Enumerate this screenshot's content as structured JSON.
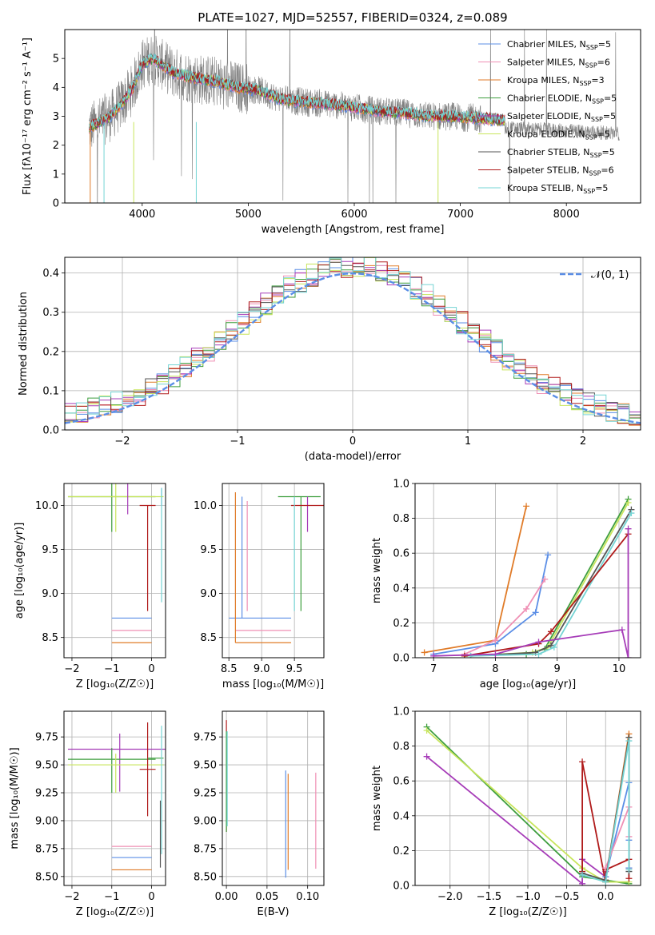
{
  "colors": {
    "chabrier_miles": "#5b8ee6",
    "salpeter_miles": "#ef8fb4",
    "kroupa_miles": "#e07b28",
    "chabrier_elodie": "#3e9e3e",
    "salpeter_elodie": "#a63cb8",
    "kroupa_elodie": "#c8e55c",
    "chabrier_stelib": "#555555",
    "salpeter_stelib": "#b01a1a",
    "kroupa_stelib": "#74d4d4",
    "data": "#808080",
    "gauss": "#5b8ee6"
  },
  "chart_data": [
    {
      "id": "spectrum",
      "type": "line",
      "title": "PLATE=1027, MJD=52557, FIBERID=0324, z=0.089",
      "xlabel": "wavelength [Angstrom, rest frame]",
      "ylabel": "Flux [fλ10⁻¹⁷ erg cm⁻² s⁻¹ A⁻¹]",
      "xlim": [
        3270,
        8700
      ],
      "ylim": [
        0,
        6
      ],
      "xticks": [
        "4000",
        "5000",
        "6000",
        "7000",
        "8000"
      ],
      "yticks": [
        "0",
        "1",
        "2",
        "3",
        "4",
        "5"
      ],
      "legend_position": "right",
      "legend": [
        {
          "key": "chabrier_miles",
          "label": "Chabrier MILES, N",
          "sub": "SSP",
          "n": "=5"
        },
        {
          "key": "salpeter_miles",
          "label": "Salpeter MILES, N",
          "sub": "SSP",
          "n": "=6"
        },
        {
          "key": "kroupa_miles",
          "label": "Kroupa MILES, N",
          "sub": "SSP",
          "n": "=3"
        },
        {
          "key": "chabrier_elodie",
          "label": "Chabrier ELODIE, N",
          "sub": "SSP",
          "n": "=5"
        },
        {
          "key": "salpeter_elodie",
          "label": "Salpeter ELODIE, N",
          "sub": "SSP",
          "n": "=5"
        },
        {
          "key": "kroupa_elodie",
          "label": "Kroupa ELODIE, N",
          "sub": "SSP",
          "n": "=5"
        },
        {
          "key": "chabrier_stelib",
          "label": "Chabrier STELIB, N",
          "sub": "SSP",
          "n": "=5"
        },
        {
          "key": "salpeter_stelib",
          "label": "Salpeter STELIB, N",
          "sub": "SSP",
          "n": "=6"
        },
        {
          "key": "kroupa_stelib",
          "label": "Kroupa STELIB, N",
          "sub": "SSP",
          "n": "=5"
        }
      ],
      "model_continuum": [
        [
          3500,
          2.6
        ],
        [
          3700,
          3.0
        ],
        [
          3800,
          3.4
        ],
        [
          3900,
          3.9
        ],
        [
          4000,
          4.8
        ],
        [
          4100,
          5.0
        ],
        [
          4300,
          4.5
        ],
        [
          4500,
          4.3
        ],
        [
          4700,
          4.2
        ],
        [
          4900,
          4.0
        ],
        [
          5100,
          3.9
        ],
        [
          5300,
          3.6
        ],
        [
          5500,
          3.5
        ],
        [
          5700,
          3.45
        ],
        [
          5900,
          3.35
        ],
        [
          6100,
          3.25
        ],
        [
          6300,
          3.15
        ],
        [
          6500,
          3.1
        ],
        [
          6700,
          3.0
        ],
        [
          6900,
          3.0
        ],
        [
          7100,
          2.95
        ],
        [
          7300,
          2.9
        ],
        [
          7420,
          2.85
        ]
      ],
      "data_range": [
        3500,
        8500
      ]
    },
    {
      "id": "residuals",
      "type": "bar",
      "xlabel": "(data-model)/error",
      "ylabel": "Normed distribution",
      "xlim": [
        -2.5,
        2.5
      ],
      "ylim": [
        0,
        0.44
      ],
      "xticks": [
        "−2",
        "−1",
        "0",
        "1",
        "2"
      ],
      "yticks": [
        "0.0",
        "0.1",
        "0.2",
        "0.3",
        "0.4"
      ],
      "legend_position": "top-right",
      "gauss_label": "𝒩(0, 1)",
      "histogram_bin_width": 0.1
    },
    {
      "id": "age_vs_Z",
      "type": "scatter",
      "xlabel": "Z [log₁₀(Z/Z☉)]",
      "ylabel": "age  [log₁₀(age/yr)]",
      "xlim": [
        -2.2,
        0.35
      ],
      "ylim": [
        8.27,
        10.25
      ],
      "xticks": [
        "−2",
        "−1",
        "0"
      ],
      "yticks": [
        "8.5",
        "9.0",
        "9.5",
        "10.0"
      ],
      "points": [
        {
          "key": "chabrier_miles",
          "x": 0.25,
          "y": 10.1,
          "xerr": [
            0,
            0
          ],
          "yerr": [
            0.1,
            0.1
          ]
        },
        {
          "key": "chabrier_miles",
          "x": -0.5,
          "y": 8.72,
          "xerr": [
            0.5,
            0.5
          ],
          "yerr": [
            0,
            0
          ]
        },
        {
          "key": "salpeter_miles",
          "x": -0.5,
          "y": 8.58,
          "xerr": [
            0.5,
            0.5
          ],
          "yerr": [
            0,
            0
          ]
        },
        {
          "key": "kroupa_miles",
          "x": -0.5,
          "y": 8.44,
          "xerr": [
            0.5,
            0.5
          ],
          "yerr": [
            0,
            0
          ]
        },
        {
          "key": "chabrier_elodie",
          "x": -1.0,
          "y": 10.1,
          "xerr": [
            1.1,
            1.1
          ],
          "yerr": [
            0.4,
            0.4
          ]
        },
        {
          "key": "kroupa_elodie",
          "x": -0.9,
          "y": 10.1,
          "xerr": [
            1.2,
            1.2
          ],
          "yerr": [
            0.4,
            0.4
          ]
        },
        {
          "key": "salpeter_elodie",
          "x": -0.6,
          "y": 10.1,
          "xerr": [
            0,
            0
          ],
          "yerr": [
            0.2,
            0.2
          ]
        },
        {
          "key": "salpeter_stelib",
          "x": -0.1,
          "y": 10.0,
          "xerr": [
            0.2,
            0.2
          ],
          "yerr": [
            1.2,
            0.0
          ]
        },
        {
          "key": "kroupa_stelib",
          "x": 0.25,
          "y": 10.1,
          "xerr": [
            0,
            0
          ],
          "yerr": [
            1.2,
            0.1
          ]
        }
      ]
    },
    {
      "id": "age_vs_mass",
      "type": "scatter",
      "xlabel": "mass [log₁₀(M/M☉)]",
      "ylabel": "",
      "xlim": [
        8.4,
        9.95
      ],
      "ylim": [
        8.27,
        10.25
      ],
      "xticks": [
        "8.5",
        "9.0",
        "9.5"
      ],
      "yticks": [
        "8.5",
        "9.0",
        "9.5",
        "10.0"
      ],
      "points": [
        {
          "key": "chabrier_miles",
          "x": 9.0,
          "y": 8.72,
          "xerr": [
            0.5,
            0.45
          ],
          "yerr": [
            0,
            0
          ]
        },
        {
          "key": "salpeter_miles",
          "x": 9.0,
          "y": 8.58,
          "xerr": [
            0.4,
            0.45
          ],
          "yerr": [
            0,
            0
          ]
        },
        {
          "key": "kroupa_miles",
          "x": 9.0,
          "y": 8.44,
          "xerr": [
            0.4,
            0.45
          ],
          "yerr": [
            0,
            0
          ]
        },
        {
          "key": "kroupa_miles",
          "x": 8.6,
          "y": 10.1,
          "xerr": [
            0,
            0
          ],
          "yerr": [
            1.66,
            0.05
          ]
        },
        {
          "key": "chabrier_miles",
          "x": 8.7,
          "y": 10.1,
          "xerr": [
            0,
            0
          ],
          "yerr": [
            1.38,
            0.0
          ]
        },
        {
          "key": "salpeter_miles",
          "x": 8.78,
          "y": 10.0,
          "xerr": [
            0,
            0
          ],
          "yerr": [
            1.2,
            0.05
          ]
        },
        {
          "key": "chabrier_elodie",
          "x": 9.6,
          "y": 10.1,
          "xerr": [
            0.35,
            0.3
          ],
          "yerr": [
            1.3,
            0.0
          ]
        },
        {
          "key": "salpeter_elodie",
          "x": 9.7,
          "y": 10.1,
          "xerr": [
            0,
            0
          ],
          "yerr": [
            0.4,
            0.0
          ]
        },
        {
          "key": "salpeter_stelib",
          "x": 9.7,
          "y": 10.0,
          "xerr": [
            0.25,
            0.3
          ],
          "yerr": [
            0,
            0
          ]
        },
        {
          "key": "kroupa_stelib",
          "x": 9.5,
          "y": 10.1,
          "xerr": [
            0,
            0
          ],
          "yerr": [
            1.3,
            0.0
          ]
        }
      ]
    },
    {
      "id": "mass_weight_vs_age",
      "type": "line",
      "xlabel": "age  [log₁₀(age/yr)]",
      "ylabel": "mass weight",
      "xlim": [
        6.7,
        10.35
      ],
      "ylim": [
        0,
        1
      ],
      "xticks": [
        "7",
        "8",
        "9",
        "10"
      ],
      "yticks": [
        "0.0",
        "0.2",
        "0.4",
        "0.6",
        "0.8",
        "1.0"
      ],
      "series": [
        {
          "key": "kroupa_miles",
          "x": [
            6.85,
            8.0,
            8.5
          ],
          "y": [
            0.03,
            0.1,
            0.87
          ]
        },
        {
          "key": "chabrier_miles",
          "x": [
            7.0,
            8.0,
            8.65,
            8.85
          ],
          "y": [
            0.02,
            0.08,
            0.26,
            0.59
          ]
        },
        {
          "key": "salpeter_miles",
          "x": [
            7.5,
            8.0,
            8.5,
            8.8
          ],
          "y": [
            0.02,
            0.1,
            0.28,
            0.45
          ]
        },
        {
          "key": "chabrier_elodie",
          "x": [
            7.5,
            8.5,
            8.8,
            10.15
          ],
          "y": [
            0.01,
            0.02,
            0.05,
            0.91
          ]
        },
        {
          "key": "kroupa_elodie",
          "x": [
            7.5,
            8.6,
            8.85,
            10.15
          ],
          "y": [
            0.01,
            0.03,
            0.06,
            0.89
          ]
        },
        {
          "key": "chabrier_stelib",
          "x": [
            7.6,
            8.65,
            8.9,
            10.2
          ],
          "y": [
            0.01,
            0.03,
            0.07,
            0.85
          ]
        },
        {
          "key": "kroupa_stelib",
          "x": [
            7.6,
            8.7,
            8.95,
            10.2
          ],
          "y": [
            0.01,
            0.02,
            0.06,
            0.83
          ]
        },
        {
          "key": "salpeter_stelib",
          "x": [
            7.5,
            8.7,
            8.9,
            10.15
          ],
          "y": [
            0.01,
            0.08,
            0.15,
            0.71
          ]
        },
        {
          "key": "salpeter_elodie",
          "x": [
            7.0,
            8.0,
            8.7,
            10.05,
            10.15,
            10.15
          ],
          "y": [
            0.01,
            0.02,
            0.09,
            0.16,
            0.0,
            0.74
          ]
        }
      ]
    },
    {
      "id": "mass_vs_Z",
      "type": "scatter",
      "xlabel": "Z [log₁₀(Z/Z☉)]",
      "ylabel": "mass [log₁₀(M/M☉)]",
      "xlim": [
        -2.2,
        0.35
      ],
      "ylim": [
        8.42,
        9.98
      ],
      "xticks": [
        "−2",
        "−1",
        "0"
      ],
      "yticks": [
        "8.50",
        "8.75",
        "9.00",
        "9.25",
        "9.50",
        "9.75"
      ],
      "points": [
        {
          "key": "salpeter_elodie",
          "x": -0.8,
          "y": 9.64,
          "xerr": [
            1.3,
            1.3
          ],
          "yerr": [
            0.38,
            0.14
          ]
        },
        {
          "key": "chabrier_elodie",
          "x": -1.0,
          "y": 9.55,
          "xerr": [
            1.1,
            1.1
          ],
          "yerr": [
            0.3,
            0.1
          ]
        },
        {
          "key": "kroupa_elodie",
          "x": -0.9,
          "y": 9.5,
          "xerr": [
            1.2,
            1.2
          ],
          "yerr": [
            0.25,
            0.1
          ]
        },
        {
          "key": "salpeter_stelib",
          "x": -0.1,
          "y": 9.46,
          "xerr": [
            0.2,
            0.2
          ],
          "yerr": [
            0.42,
            0.42
          ]
        },
        {
          "key": "chabrier_elodie",
          "x": 0.1,
          "y": 9.56,
          "xerr": [
            0.2,
            0.2
          ],
          "yerr": [
            0,
            0
          ]
        },
        {
          "key": "kroupa_stelib",
          "x": 0.25,
          "y": 9.55,
          "xerr": [
            0,
            0
          ],
          "yerr": [
            0.85,
            0.3
          ]
        },
        {
          "key": "chabrier_stelib",
          "x": 0.22,
          "y": 8.88,
          "xerr": [
            0,
            0
          ],
          "yerr": [
            0.3,
            0.3
          ]
        },
        {
          "key": "salpeter_miles",
          "x": -0.5,
          "y": 8.77,
          "xerr": [
            0.5,
            0.5
          ],
          "yerr": [
            0,
            0
          ]
        },
        {
          "key": "chabrier_miles",
          "x": -0.5,
          "y": 8.67,
          "xerr": [
            0.5,
            0.5
          ],
          "yerr": [
            0,
            0
          ]
        },
        {
          "key": "kroupa_miles",
          "x": -0.5,
          "y": 8.56,
          "xerr": [
            0.5,
            0.5
          ],
          "yerr": [
            0,
            0
          ]
        }
      ]
    },
    {
      "id": "mass_vs_EBV",
      "type": "scatter",
      "xlabel": "E(B-V)",
      "ylabel": "",
      "xlim": [
        -0.005,
        0.12
      ],
      "ylim": [
        8.42,
        9.98
      ],
      "xticks": [
        "0.00",
        "0.05",
        "0.10"
      ],
      "yticks": [
        "8.50",
        "8.75",
        "9.00",
        "9.25",
        "9.50",
        "9.75"
      ],
      "points": [
        {
          "key": "salpeter_stelib",
          "x": 0.0,
          "y": 9.5,
          "xerr": [
            0,
            0
          ],
          "yerr": [
            0.6,
            0.4
          ]
        },
        {
          "key": "chabrier_elodie",
          "x": 0.0,
          "y": 9.4,
          "xerr": [
            0,
            0
          ],
          "yerr": [
            0.5,
            0.4
          ]
        },
        {
          "key": "kroupa_stelib",
          "x": 0.001,
          "y": 9.35,
          "xerr": [
            0,
            0
          ],
          "yerr": [
            0.4,
            0.45
          ]
        },
        {
          "key": "chabrier_miles",
          "x": 0.073,
          "y": 8.97,
          "xerr": [
            0,
            0
          ],
          "yerr": [
            0.48,
            0.48
          ]
        },
        {
          "key": "kroupa_miles",
          "x": 0.076,
          "y": 8.99,
          "xerr": [
            0,
            0
          ],
          "yerr": [
            0.43,
            0.43
          ]
        },
        {
          "key": "salpeter_miles",
          "x": 0.11,
          "y": 9.0,
          "xerr": [
            0,
            0
          ],
          "yerr": [
            0.43,
            0.43
          ]
        }
      ]
    },
    {
      "id": "mass_weight_vs_Z",
      "type": "line",
      "xlabel": "Z [log₁₀(Z/Z☉)]",
      "ylabel": "mass weight",
      "xlim": [
        -2.45,
        0.45
      ],
      "ylim": [
        0,
        1
      ],
      "xticks": [
        "−2.0",
        "−1.5",
        "−1.0",
        "−0.5",
        "0.0"
      ],
      "yticks": [
        "0.0",
        "0.2",
        "0.4",
        "0.6",
        "0.8",
        "1.0"
      ],
      "series": [
        {
          "key": "chabrier_elodie",
          "x": [
            -2.3,
            -0.3,
            0.0,
            0.3
          ],
          "y": [
            0.91,
            0.05,
            0.03,
            0.01
          ]
        },
        {
          "key": "kroupa_elodie",
          "x": [
            -2.3,
            -0.3,
            0.0,
            0.3
          ],
          "y": [
            0.89,
            0.1,
            0.02,
            0.02
          ]
        },
        {
          "key": "salpeter_elodie",
          "x": [
            -2.3,
            -0.3,
            -0.3,
            0.0,
            0.0
          ],
          "y": [
            0.74,
            0.01,
            0.15,
            0.05,
            0.08
          ]
        },
        {
          "key": "salpeter_stelib",
          "x": [
            -0.3,
            -0.3,
            0.0,
            0.0,
            0.3,
            0.3
          ],
          "y": [
            0.08,
            0.71,
            0.02,
            0.09,
            0.15,
            0.04
          ]
        },
        {
          "key": "kroupa_miles",
          "x": [
            0.0,
            0.3,
            0.3
          ],
          "y": [
            0.03,
            0.87,
            0.1
          ]
        },
        {
          "key": "chabrier_miles",
          "x": [
            0.0,
            0.3,
            0.3,
            0.3
          ],
          "y": [
            0.05,
            0.59,
            0.26,
            0.1
          ]
        },
        {
          "key": "salpeter_miles",
          "x": [
            0.0,
            0.3,
            0.3
          ],
          "y": [
            0.1,
            0.45,
            0.28
          ]
        },
        {
          "key": "chabrier_stelib",
          "x": [
            -0.3,
            0.0,
            0.3,
            0.3
          ],
          "y": [
            0.07,
            0.03,
            0.85,
            0.08
          ]
        },
        {
          "key": "kroupa_stelib",
          "x": [
            -0.3,
            0.0,
            0.3,
            0.3
          ],
          "y": [
            0.06,
            0.02,
            0.83,
            0.09
          ]
        }
      ]
    }
  ]
}
